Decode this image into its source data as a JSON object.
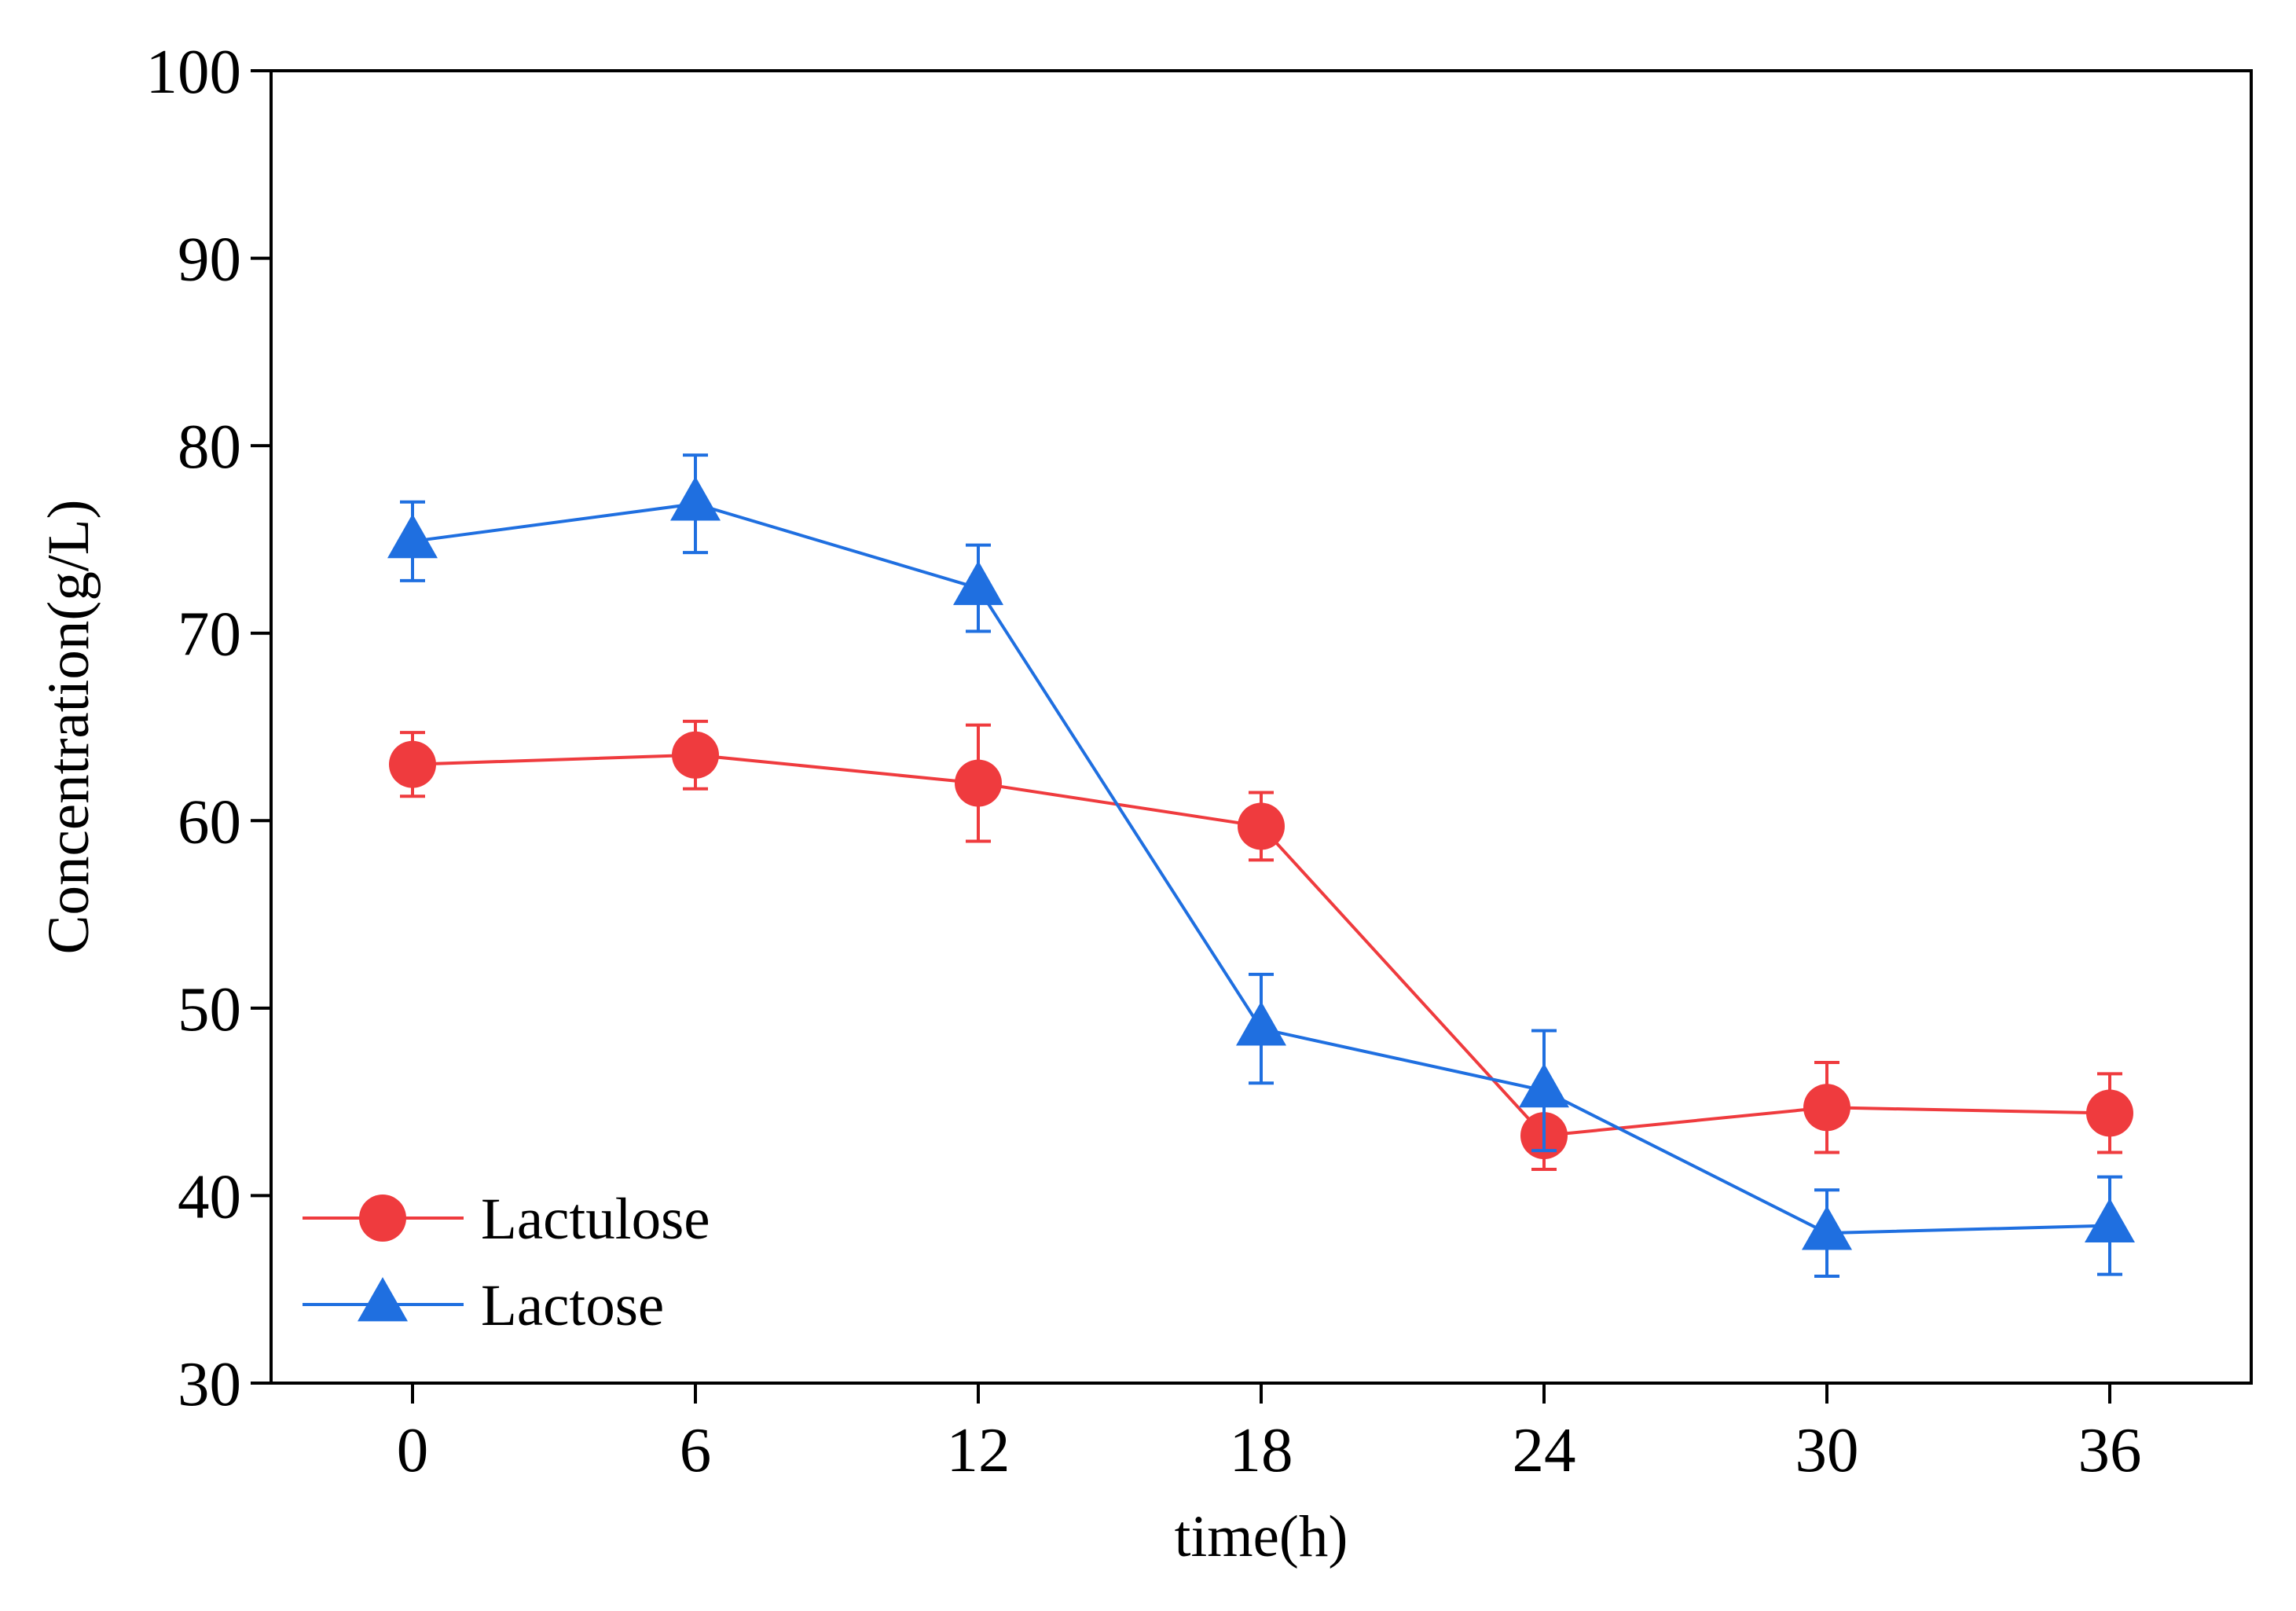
{
  "chart_data": {
    "type": "line",
    "title": "",
    "xlabel": "time(h)",
    "ylabel": "Concentration(g/L)",
    "x": [
      0,
      6,
      12,
      18,
      24,
      30,
      36
    ],
    "x_ticks": [
      "0",
      "6",
      "12",
      "18",
      "24",
      "30",
      "36"
    ],
    "xlim": [
      -3,
      39
    ],
    "y_ticks": [
      "30",
      "40",
      "50",
      "60",
      "70",
      "80",
      "90",
      "100"
    ],
    "ylim": [
      30,
      100
    ],
    "grid": false,
    "legend_position": "bottom-left",
    "series": [
      {
        "name": "Lactulose",
        "marker": "circle",
        "color": "#EF3B3E",
        "values": [
          63.0,
          63.5,
          62.0,
          59.7,
          43.2,
          44.7,
          44.4
        ],
        "error": [
          1.7,
          1.8,
          3.1,
          1.8,
          1.8,
          2.4,
          2.1
        ]
      },
      {
        "name": "Lactose",
        "marker": "triangle",
        "color": "#1F6FE0",
        "values": [
          74.9,
          76.9,
          72.4,
          48.9,
          45.6,
          38.0,
          38.4
        ],
        "error": [
          2.1,
          2.6,
          2.3,
          2.9,
          3.2,
          2.3,
          2.6
        ]
      }
    ]
  }
}
